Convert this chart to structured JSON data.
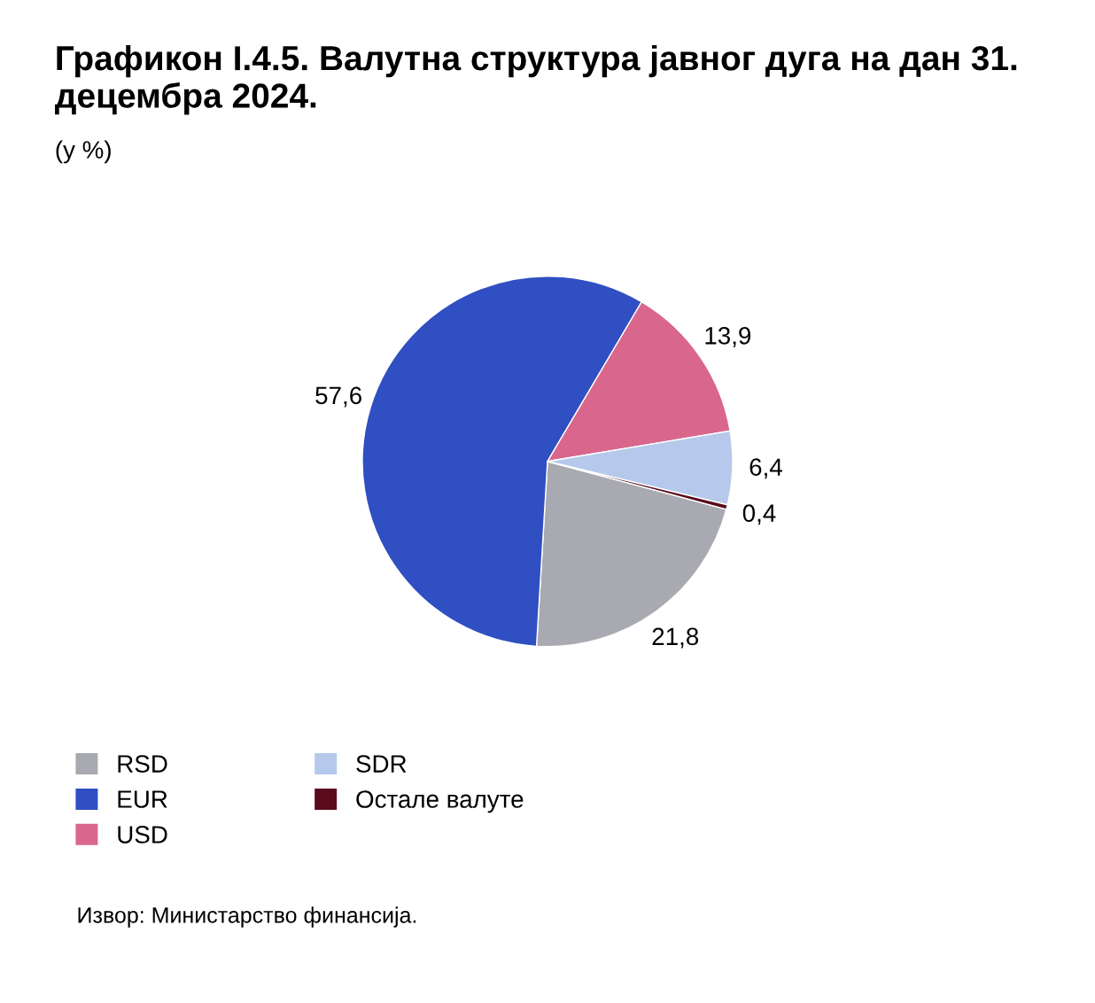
{
  "chart_data": {
    "type": "pie",
    "title": "Графикон I.4.5. Валутна структура јавног дуга на дан 31. децембра 2024.",
    "subtitle": "(у %)",
    "categories": [
      "RSD",
      "EUR",
      "USD",
      "SDR",
      "Остале валуте"
    ],
    "values": [
      21.8,
      57.6,
      13.9,
      6.4,
      0.4
    ],
    "value_labels": [
      "21,8",
      "57,6",
      "13,9",
      "6,4",
      "0,4"
    ],
    "colors": [
      "#a9a9b1",
      "#2f4fc2",
      "#d9678d",
      "#b6c9ec",
      "#5a0c1c"
    ],
    "legend": "bottom",
    "annotations": [
      "Извор: Министарство финансија."
    ]
  }
}
